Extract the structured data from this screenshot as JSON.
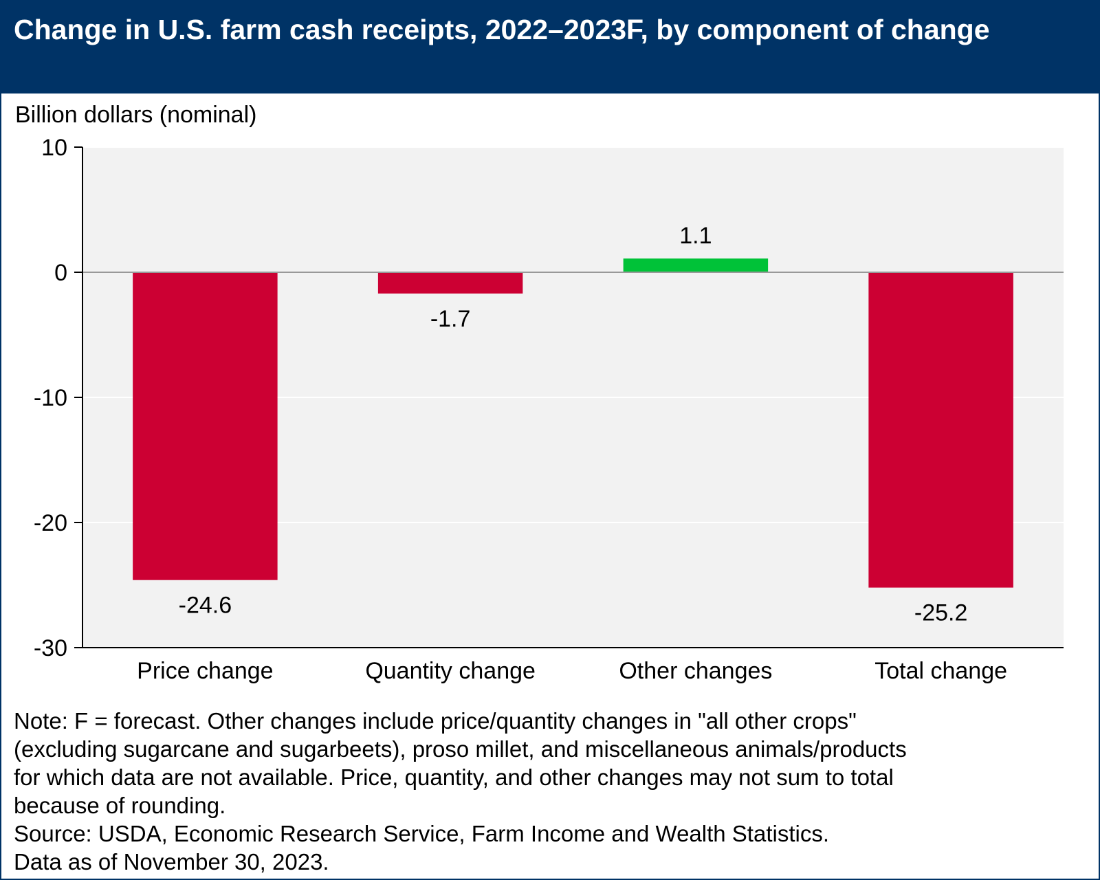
{
  "header": {
    "title": "Change in U.S. farm cash receipts, 2022–2023F, by component of change"
  },
  "chart_data": {
    "type": "bar",
    "title": "Change in U.S. farm cash receipts, 2022–2023F, by component of change",
    "xlabel": "",
    "ylabel": "Billion dollars (nominal)",
    "categories": [
      "Price change",
      "Quantity change",
      "Other changes",
      "Total change"
    ],
    "values": [
      -24.6,
      -1.7,
      1.1,
      -25.2
    ],
    "value_labels": [
      "-24.6",
      "-1.7",
      "1.1",
      "-25.2"
    ],
    "ylim": [
      -30,
      10
    ],
    "yticks": [
      10,
      0,
      -10,
      -20,
      -30
    ],
    "ytick_labels": [
      "10",
      "0",
      "-10",
      "-20",
      "-30"
    ],
    "grid": true,
    "legend": "none",
    "colors": {
      "negative": "#cc0033",
      "positive": "#00c238",
      "plot_background": "#f2f2f2",
      "gridline": "#ffffff",
      "zero_line": "#999999",
      "header_background": "#003366"
    }
  },
  "notes": {
    "lines": [
      "Note: F = forecast. Other changes include price/quantity changes in \"all other crops\"",
      "(excluding sugarcane and sugarbeets), proso millet, and miscellaneous animals/products",
      "for which data are not available. Price, quantity, and other changes may not sum to total",
      "because of rounding.",
      "Source: USDA, Economic Research Service, Farm Income and Wealth Statistics.",
      "Data as of November 30, 2023."
    ]
  }
}
